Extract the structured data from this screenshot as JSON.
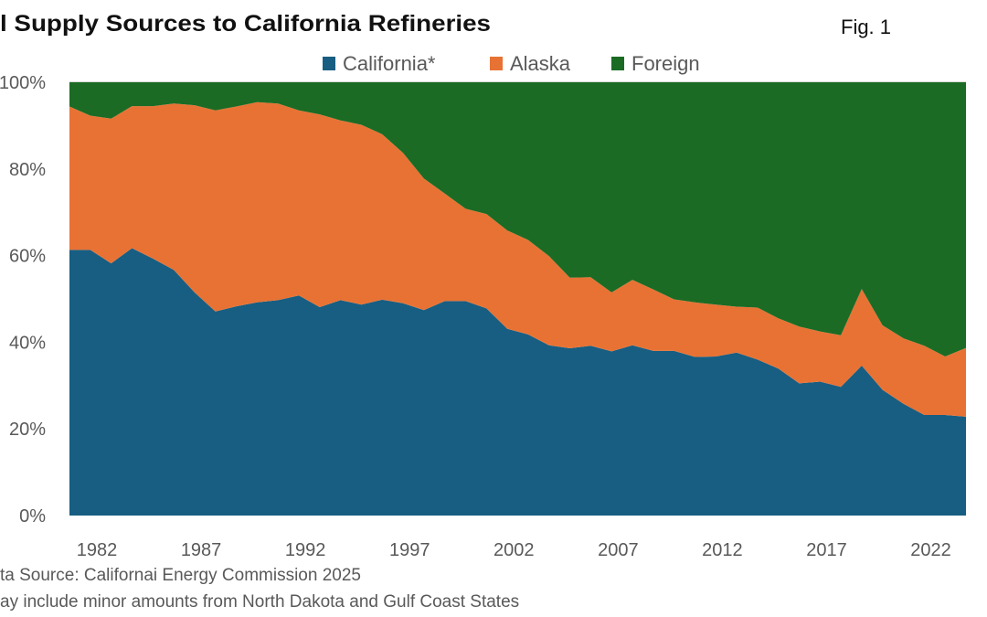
{
  "figure_label": "Fig. 1",
  "notes": [
    "ta Source: Californai Energy Commission 2025",
    "ay include minor amounts from North Dakota and Gulf Coast States"
  ],
  "chart_data": {
    "type": "area",
    "stacked": true,
    "title": "l Supply Sources to California Refineries",
    "xlabel": "",
    "ylabel": "",
    "ylim": [
      0,
      100
    ],
    "y_ticks": [
      "0%",
      "20%",
      "40%",
      "60%",
      "80%",
      "100%"
    ],
    "x_tick_labels": [
      "1982",
      "1987",
      "1992",
      "1997",
      "2002",
      "2007",
      "2012",
      "2017",
      "2022"
    ],
    "legend_position": "top",
    "grid": false,
    "x": [
      1982,
      1983,
      1984,
      1985,
      1986,
      1987,
      1988,
      1989,
      1990,
      1991,
      1992,
      1993,
      1994,
      1995,
      1996,
      1997,
      1998,
      1999,
      2000,
      2001,
      2002,
      2003,
      2004,
      2005,
      2006,
      2007,
      2008,
      2009,
      2010,
      2011,
      2012,
      2013,
      2014,
      2015,
      2016,
      2017,
      2018,
      2019,
      2020,
      2021,
      2022,
      2023,
      2024,
      2025
    ],
    "series": [
      {
        "name": "California*",
        "color": "#175e82",
        "values": [
          61.3,
          61.3,
          58.2,
          61.7,
          59.3,
          56.7,
          51.5,
          47.1,
          48.3,
          49.2,
          49.7,
          50.8,
          48.1,
          49.7,
          48.7,
          49.8,
          49.0,
          47.4,
          49.5,
          49.5,
          47.8,
          43.1,
          41.8,
          39.3,
          38.6,
          39.2,
          37.9,
          39.3,
          38.0,
          38.0,
          36.6,
          36.7,
          37.6,
          36.0,
          33.9,
          30.5,
          30.9,
          29.7,
          34.6,
          29.0,
          25.8,
          23.2,
          23.2,
          22.8
        ]
      },
      {
        "name": "Alaska",
        "color": "#e87234",
        "values": [
          33.1,
          31.0,
          33.4,
          32.8,
          35.2,
          38.4,
          43.2,
          46.4,
          46.1,
          46.2,
          45.4,
          42.7,
          44.5,
          41.5,
          41.5,
          38.2,
          34.7,
          30.4,
          24.8,
          21.3,
          21.8,
          22.7,
          21.8,
          20.6,
          16.3,
          15.8,
          13.6,
          15.1,
          14.2,
          11.9,
          12.6,
          12.0,
          10.6,
          12.0,
          11.6,
          13.1,
          11.6,
          11.9,
          17.7,
          14.9,
          15.1,
          16.0,
          13.5,
          15.9
        ]
      },
      {
        "name": "Foreign",
        "color": "#1b6b24",
        "values": [
          5.6,
          7.7,
          8.4,
          5.5,
          5.5,
          4.9,
          5.3,
          6.5,
          5.6,
          4.6,
          4.9,
          6.5,
          7.4,
          8.8,
          9.8,
          12.0,
          16.3,
          22.2,
          25.7,
          29.2,
          30.4,
          34.2,
          36.4,
          40.1,
          45.1,
          45.0,
          48.5,
          45.6,
          47.8,
          50.1,
          50.8,
          51.3,
          51.8,
          52.0,
          54.5,
          56.4,
          57.5,
          58.4,
          47.7,
          56.1,
          59.1,
          60.8,
          63.3,
          61.3
        ]
      }
    ]
  }
}
